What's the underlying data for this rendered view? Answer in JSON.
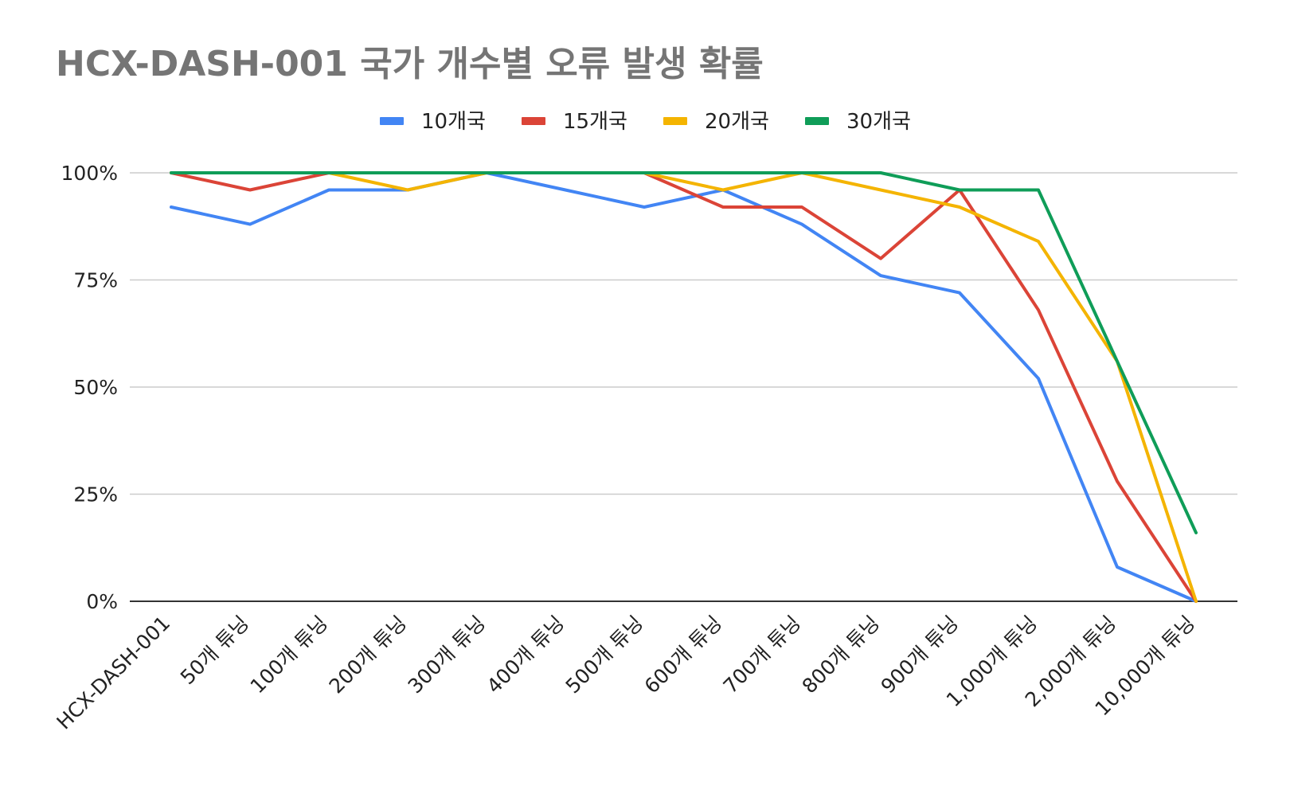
{
  "chart_data": {
    "type": "line",
    "title": "HCX-DASH-001 국가 개수별 오류 발생 확률",
    "xlabel": "",
    "ylabel": "",
    "categories": [
      "HCX-DASH-001",
      "50개 튜닝",
      "100개 튜닝",
      "200개 튜닝",
      "300개 튜닝",
      "400개 튜닝",
      "500개 튜닝",
      "600개 튜닝",
      "700개 튜닝",
      "800개 튜닝",
      "900개 튜닝",
      "1,000개 튜닝",
      "2,000개 튜닝",
      "10,000개 튜닝"
    ],
    "yticks": [
      "0%",
      "25%",
      "50%",
      "75%",
      "100%"
    ],
    "ylim": [
      0,
      100
    ],
    "grid": true,
    "legend_position": "top",
    "series": [
      {
        "name": "10개국",
        "color": "#4285f4",
        "values": [
          92,
          88,
          96,
          96,
          100,
          96,
          92,
          96,
          88,
          76,
          72,
          52,
          8,
          0
        ]
      },
      {
        "name": "15개국",
        "color": "#db4437",
        "values": [
          100,
          96,
          100,
          100,
          100,
          100,
          100,
          92,
          92,
          80,
          96,
          68,
          28,
          0
        ]
      },
      {
        "name": "20개국",
        "color": "#f4b400",
        "values": [
          100,
          100,
          100,
          96,
          100,
          100,
          100,
          96,
          100,
          96,
          92,
          84,
          56,
          0
        ]
      },
      {
        "name": "30개국",
        "color": "#0f9d58",
        "values": [
          100,
          100,
          100,
          100,
          100,
          100,
          100,
          100,
          100,
          100,
          96,
          96,
          56,
          16
        ]
      }
    ]
  }
}
